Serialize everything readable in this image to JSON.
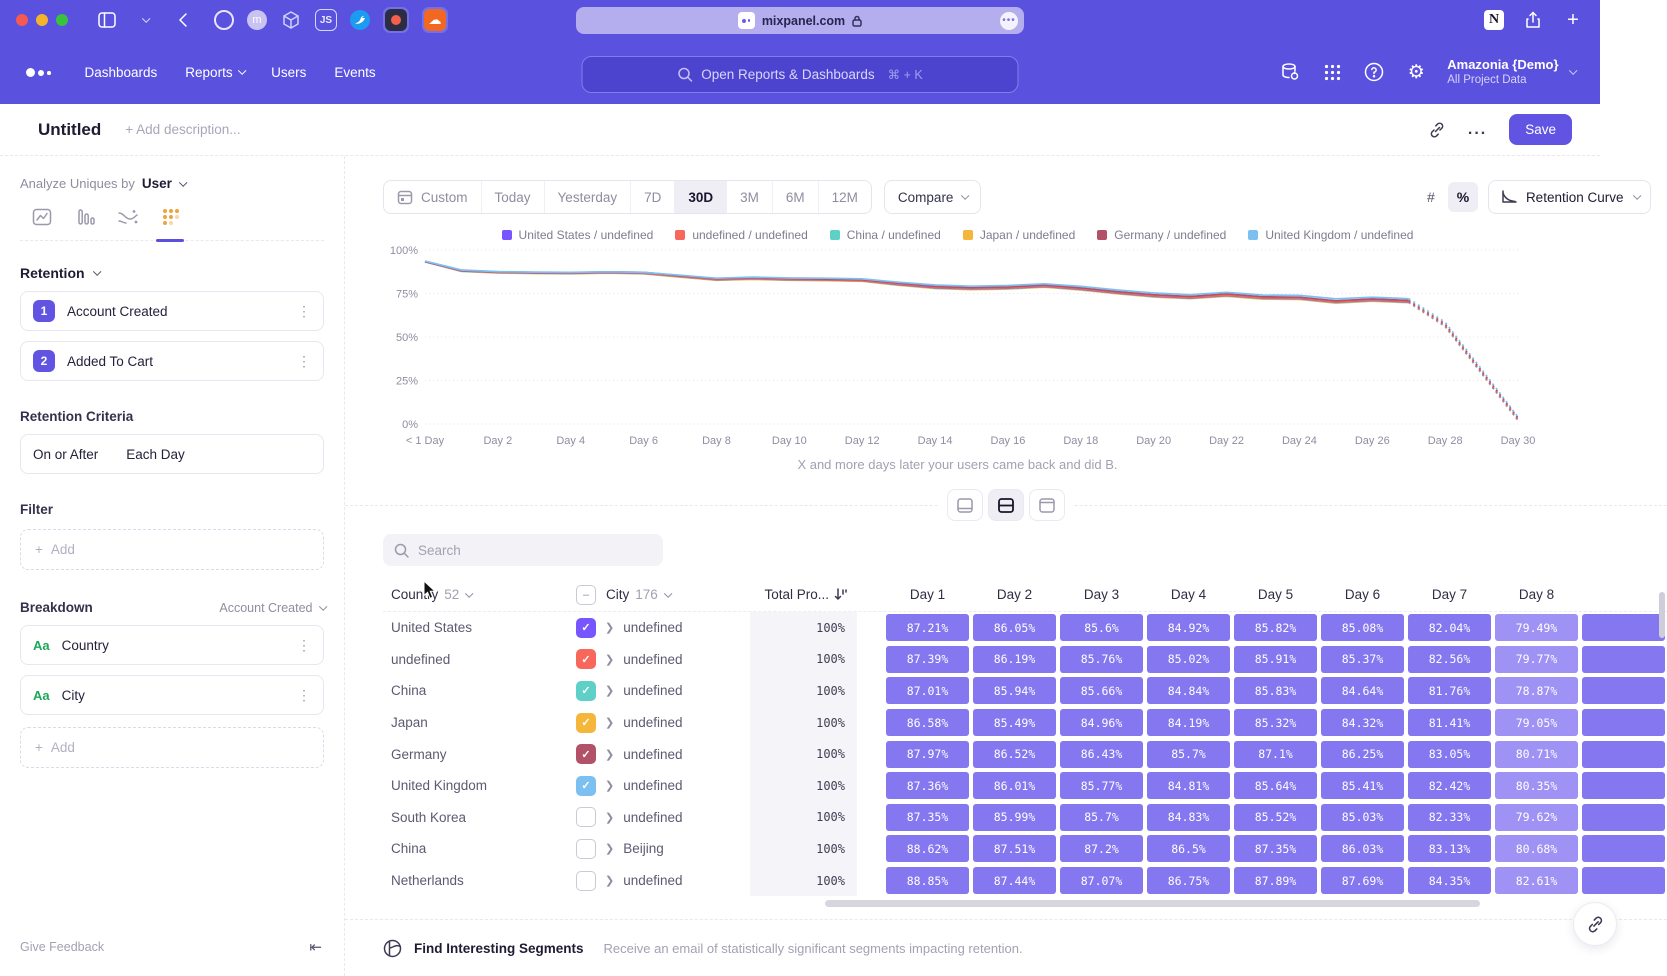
{
  "browser": {
    "url": "mixpanel.com"
  },
  "nav": {
    "items": [
      "Dashboards",
      "Reports",
      "Users",
      "Events"
    ],
    "search_placeholder": "Open Reports & Dashboards",
    "search_shortcut": "⌘ + K",
    "org_name": "Amazonia {Demo}",
    "org_project": "All Project Data"
  },
  "header": {
    "title": "Untitled",
    "description_placeholder": "+ Add description...",
    "more_label": "...",
    "save_label": "Save"
  },
  "sidebar": {
    "analyze_label": "Analyze Uniques by",
    "analyze_value": "User",
    "section_label": "Retention",
    "steps": [
      {
        "num": "1",
        "label": "Account Created"
      },
      {
        "num": "2",
        "label": "Added To Cart"
      }
    ],
    "criteria_label": "Retention Criteria",
    "criteria_left": "On or After",
    "criteria_right": "Each Day",
    "filter_label": "Filter",
    "add_label": "Add",
    "breakdown_label": "Breakdown",
    "breakdown_value": "Account Created",
    "breakdowns": [
      {
        "type": "Aa",
        "label": "Country"
      },
      {
        "type": "Aa",
        "label": "City"
      }
    ],
    "feedback_label": "Give Feedback"
  },
  "toolbar": {
    "ranges": [
      "Custom",
      "Today",
      "Yesterday",
      "7D",
      "30D",
      "3M",
      "6M",
      "12M"
    ],
    "active_range": "30D",
    "compare_label": "Compare",
    "count_toggle": "#",
    "percent_toggle": "%",
    "chart_type_label": "Retention Curve"
  },
  "chart_data": {
    "type": "line",
    "caption": "X and more days later your users came back and did B.",
    "ylim": [
      0,
      100
    ],
    "y_ticks": [
      100,
      75,
      50,
      25,
      0
    ],
    "x_max": 30,
    "x_tick_step": 2,
    "x_tick_labels": [
      "< 1 Day",
      "Day 2",
      "Day 4",
      "Day 6",
      "Day 8",
      "Day 10",
      "Day 12",
      "Day 14",
      "Day 16",
      "Day 18",
      "Day 20",
      "Day 22",
      "Day 24",
      "Day 26",
      "Day 28",
      "Day 30"
    ],
    "solid_until_index": 27,
    "draw_order": [
      3,
      2,
      0,
      1,
      4,
      5
    ],
    "series": [
      {
        "name": "United States / undefined",
        "color": "#7856ff",
        "values": [
          93.3,
          88.0,
          87.1,
          86.8,
          86.6,
          87.0,
          86.6,
          84.8,
          83.0,
          83.5,
          83.0,
          82.8,
          82.4,
          80.2,
          78.4,
          77.7,
          78.1,
          79.1,
          77.5,
          75.3,
          73.5,
          72.5,
          73.9,
          72.3,
          72.1,
          70.0,
          71.1,
          70.2,
          56.5,
          29.5,
          2.5
        ]
      },
      {
        "name": "undefined / undefined",
        "color": "#f8675c",
        "values": [
          93.4,
          88.1,
          87.2,
          86.9,
          86.7,
          87.1,
          86.7,
          84.9,
          83.1,
          83.6,
          83.1,
          82.9,
          82.5,
          80.4,
          78.6,
          77.9,
          78.3,
          79.3,
          77.7,
          75.5,
          73.7,
          72.7,
          74.1,
          72.5,
          72.3,
          70.2,
          71.3,
          70.4,
          56.8,
          29.8,
          2.8
        ]
      },
      {
        "name": "China / undefined",
        "color": "#5fd0c7",
        "values": [
          93.2,
          87.9,
          87.0,
          86.7,
          86.5,
          86.9,
          86.5,
          84.7,
          82.9,
          83.4,
          82.9,
          82.7,
          82.3,
          80.0,
          78.2,
          77.5,
          77.9,
          78.9,
          77.3,
          75.1,
          73.3,
          72.3,
          73.7,
          72.1,
          71.9,
          69.8,
          70.9,
          70.0,
          56.2,
          29.2,
          2.2
        ]
      },
      {
        "name": "Japan / undefined",
        "color": "#f5b63c",
        "values": [
          93.2,
          87.7,
          86.8,
          86.5,
          86.3,
          86.7,
          86.3,
          84.4,
          82.6,
          83.1,
          82.6,
          82.4,
          82.0,
          79.7,
          77.9,
          77.2,
          77.6,
          78.6,
          77.0,
          74.8,
          73.0,
          72.0,
          73.4,
          71.8,
          71.6,
          69.5,
          70.6,
          69.7,
          55.9,
          28.9,
          1.9
        ]
      },
      {
        "name": "Germany / undefined",
        "color": "#b25268",
        "values": [
          93.5,
          88.3,
          87.5,
          87.2,
          87.0,
          87.5,
          87.1,
          85.3,
          83.5,
          84.0,
          83.5,
          83.3,
          82.9,
          80.9,
          79.1,
          78.4,
          78.8,
          79.9,
          78.2,
          76.1,
          74.3,
          73.3,
          74.8,
          73.1,
          72.9,
          70.8,
          71.9,
          71.0,
          57.5,
          30.5,
          3.5
        ]
      },
      {
        "name": "United Kingdom / undefined",
        "color": "#7cc0f2",
        "values": [
          93.6,
          88.5,
          87.6,
          87.3,
          87.1,
          87.5,
          87.1,
          85.5,
          83.8,
          84.4,
          83.9,
          83.8,
          83.4,
          81.5,
          79.9,
          79.2,
          79.6,
          80.6,
          79.1,
          77.0,
          75.3,
          74.3,
          75.7,
          74.1,
          73.9,
          71.9,
          72.9,
          72.0,
          58.5,
          31.5,
          4.0
        ]
      }
    ]
  },
  "table": {
    "search_placeholder": "Search",
    "country_header": "Country",
    "country_count": "52",
    "city_header": "City",
    "city_count": "176",
    "total_header": "Total Pro...",
    "day_headers": [
      "Day 1",
      "Day 2",
      "Day 3",
      "Day 4",
      "Day 5",
      "Day 6",
      "Day 7",
      "Day 8"
    ],
    "cell_color": "#8477f0",
    "cell_color_light": "#9e92f4",
    "rows": [
      {
        "country": "United States",
        "checked": true,
        "color": "#7856ff",
        "city": "undefined",
        "total": "100%",
        "values": [
          "87.21%",
          "86.05%",
          "85.6%",
          "84.92%",
          "85.82%",
          "85.08%",
          "82.04%",
          "79.49%"
        ]
      },
      {
        "country": "undefined",
        "checked": true,
        "color": "#f8675c",
        "city": "undefined",
        "total": "100%",
        "values": [
          "87.39%",
          "86.19%",
          "85.76%",
          "85.02%",
          "85.91%",
          "85.37%",
          "82.56%",
          "79.77%"
        ]
      },
      {
        "country": "China",
        "checked": true,
        "color": "#5fd0c7",
        "city": "undefined",
        "total": "100%",
        "values": [
          "87.01%",
          "85.94%",
          "85.66%",
          "84.84%",
          "85.83%",
          "84.64%",
          "81.76%",
          "78.87%"
        ]
      },
      {
        "country": "Japan",
        "checked": true,
        "color": "#f5b63c",
        "city": "undefined",
        "total": "100%",
        "values": [
          "86.58%",
          "85.49%",
          "84.96%",
          "84.19%",
          "85.32%",
          "84.32%",
          "81.41%",
          "79.05%"
        ]
      },
      {
        "country": "Germany",
        "checked": true,
        "color": "#b25268",
        "city": "undefined",
        "total": "100%",
        "values": [
          "87.97%",
          "86.52%",
          "86.43%",
          "85.7%",
          "87.1%",
          "86.25%",
          "83.05%",
          "80.71%"
        ]
      },
      {
        "country": "United Kingdom",
        "checked": true,
        "color": "#7cc0f2",
        "city": "undefined",
        "total": "100%",
        "values": [
          "87.36%",
          "86.01%",
          "85.77%",
          "84.81%",
          "85.64%",
          "85.41%",
          "82.42%",
          "80.35%"
        ]
      },
      {
        "country": "South Korea",
        "checked": false,
        "color": null,
        "city": "undefined",
        "total": "100%",
        "values": [
          "87.35%",
          "85.99%",
          "85.7%",
          "84.83%",
          "85.52%",
          "85.03%",
          "82.33%",
          "79.62%"
        ]
      },
      {
        "country": "China",
        "checked": false,
        "color": null,
        "city": "Beijing",
        "total": "100%",
        "values": [
          "88.62%",
          "87.51%",
          "87.2%",
          "86.5%",
          "87.35%",
          "86.03%",
          "83.13%",
          "80.68%"
        ]
      },
      {
        "country": "Netherlands",
        "checked": false,
        "color": null,
        "city": "undefined",
        "total": "100%",
        "values": [
          "88.85%",
          "87.44%",
          "87.07%",
          "86.75%",
          "87.89%",
          "87.69%",
          "84.35%",
          "82.61%"
        ]
      }
    ]
  },
  "footer": {
    "title": "Find Interesting Segments",
    "description": "Receive an email of statistically significant segments impacting retention."
  }
}
